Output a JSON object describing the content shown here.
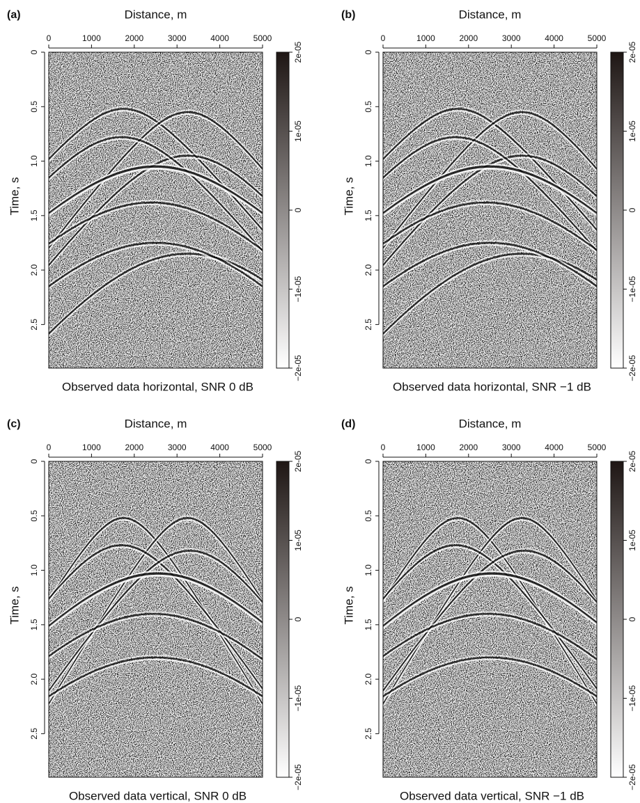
{
  "chart_data": [
    {
      "type": "image",
      "panel_label": "(a)",
      "title": "Distance, m",
      "ylabel": "Time, s",
      "caption": "Observed data horizontal, SNR 0 dB",
      "xlim": [
        0,
        5000
      ],
      "xticks": [
        0,
        1000,
        2000,
        3000,
        4000,
        5000
      ],
      "ylim": [
        0,
        2.9
      ],
      "yticks": [
        0,
        0.5,
        {
          "value": 1,
          "label": "1.0"
        },
        1.5,
        {
          "value": 2,
          "label": "2.0"
        },
        2.5
      ],
      "clim": [
        -2e-05,
        2e-05
      ],
      "colormap": [
        "#ffffff",
        "#1e1614"
      ],
      "cticks": [
        {
          "value": 2e-05,
          "label": "2e-05"
        },
        {
          "value": 1e-05,
          "label": "1e-05"
        },
        0,
        {
          "value": -1e-05,
          "label": "−1e-05"
        },
        {
          "value": -2e-05,
          "label": "−2e-05"
        }
      ]
    },
    {
      "type": "image",
      "panel_label": "(b)",
      "title": "Distance, m",
      "ylabel": "Time, s",
      "caption": "Observed data horizontal, SNR −1 dB",
      "xlim": [
        0,
        5000
      ],
      "xticks": [
        0,
        1000,
        2000,
        3000,
        4000,
        5000
      ],
      "ylim": [
        0,
        2.9
      ],
      "yticks": [
        0,
        0.5,
        {
          "value": 1,
          "label": "1.0"
        },
        1.5,
        {
          "value": 2,
          "label": "2.0"
        },
        2.5
      ],
      "clim": [
        -2e-05,
        2e-05
      ],
      "colormap": [
        "#ffffff",
        "#1e1614"
      ],
      "cticks": [
        {
          "value": 2e-05,
          "label": "2e-05"
        },
        {
          "value": 1e-05,
          "label": "1e-05"
        },
        0,
        {
          "value": -1e-05,
          "label": "−1e-05"
        },
        {
          "value": -2e-05,
          "label": "−2e-05"
        }
      ]
    },
    {
      "type": "image",
      "panel_label": "(c)",
      "title": "Distance, m",
      "ylabel": "Time, s",
      "caption": "Observed data vertical, SNR 0 dB",
      "xlim": [
        0,
        5000
      ],
      "xticks": [
        0,
        1000,
        2000,
        3000,
        4000,
        5000
      ],
      "ylim": [
        0,
        2.9
      ],
      "yticks": [
        0,
        0.5,
        {
          "value": 1,
          "label": "1.0"
        },
        1.5,
        {
          "value": 2,
          "label": "2.0"
        },
        2.5
      ],
      "clim": [
        -2e-05,
        2e-05
      ],
      "colormap": [
        "#ffffff",
        "#1e1614"
      ],
      "cticks": [
        {
          "value": 2e-05,
          "label": "2e-05"
        },
        {
          "value": 1e-05,
          "label": "1e-05"
        },
        0,
        {
          "value": -1e-05,
          "label": "−1e-05"
        },
        {
          "value": -2e-05,
          "label": "−2e-05"
        }
      ]
    },
    {
      "type": "image",
      "panel_label": "(d)",
      "title": "Distance, m",
      "ylabel": "Time, s",
      "caption": "Observed data vertical, SNR −1 dB",
      "xlim": [
        0,
        5000
      ],
      "xticks": [
        0,
        1000,
        2000,
        3000,
        4000,
        5000
      ],
      "ylim": [
        0,
        2.9
      ],
      "yticks": [
        0,
        0.5,
        {
          "value": 1,
          "label": "1.0"
        },
        1.5,
        {
          "value": 2,
          "label": "2.0"
        },
        2.5
      ],
      "clim": [
        -2e-05,
        2e-05
      ],
      "colormap": [
        "#ffffff",
        "#1e1614"
      ],
      "cticks": [
        {
          "value": 2e-05,
          "label": "2e-05"
        },
        {
          "value": 1e-05,
          "label": "1e-05"
        },
        0,
        {
          "value": -1e-05,
          "label": "−1e-05"
        },
        {
          "value": -2e-05,
          "label": "−2e-05"
        }
      ]
    }
  ]
}
